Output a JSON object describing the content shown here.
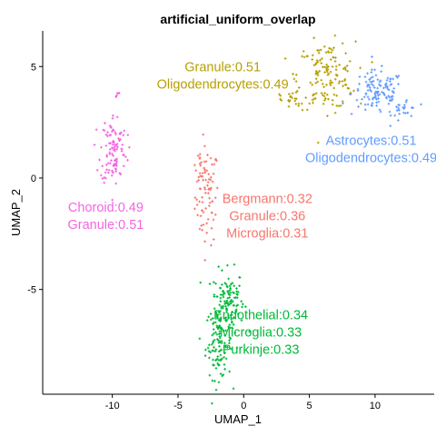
{
  "chart_data": {
    "type": "scatter",
    "title": "artificial_uniform_overlap",
    "xlabel": "UMAP_1",
    "ylabel": "UMAP_2",
    "xlim": [
      -15.3,
      14.5
    ],
    "ylim": [
      -9.7,
      6.6
    ],
    "x_ticks": [
      {
        "value": -10,
        "label": "-10"
      },
      {
        "value": -5,
        "label": "-5"
      },
      {
        "value": 0,
        "label": "0"
      },
      {
        "value": 5,
        "label": "5"
      },
      {
        "value": 10,
        "label": "10"
      }
    ],
    "y_ticks": [
      {
        "value": -5,
        "label": "-5"
      },
      {
        "value": 0,
        "label": "0"
      },
      {
        "value": 5,
        "label": "5"
      }
    ],
    "grid": false,
    "legend": "none",
    "clusters": [
      {
        "color": "#F8766D",
        "anchor_x": 1.8,
        "anchor_y": -1.7,
        "label_lines": [
          "Bergmann:0.32",
          "Granule:0.36",
          "Microglia:0.31"
        ],
        "regions": [
          {
            "x": -2.8,
            "y": -0.8,
            "sx": 0.45,
            "sy": 1.1,
            "n": 75
          },
          {
            "x": -3.3,
            "y": 0.4,
            "sx": 0.3,
            "sy": 0.4,
            "n": 15
          }
        ]
      },
      {
        "color": "#00BA38",
        "anchor_x": 1.3,
        "anchor_y": -6.9,
        "label_lines": [
          "Endothelial:0.34",
          "Microglia:0.33",
          "Purkinje:0.33"
        ],
        "regions": [
          {
            "x": -1.2,
            "y": -5.5,
            "sx": 0.6,
            "sy": 0.7,
            "n": 120
          },
          {
            "x": -1.9,
            "y": -7.4,
            "sx": 0.5,
            "sy": 0.8,
            "n": 110
          }
        ]
      },
      {
        "color": "#619CFF",
        "anchor_x": 9.7,
        "anchor_y": 1.3,
        "label_lines": [
          "Astrocytes:0.51",
          "Oligodendrocytes:0.49"
        ],
        "regions": [
          {
            "x": 10.2,
            "y": 3.8,
            "sx": 1.0,
            "sy": 0.5,
            "n": 120
          },
          {
            "x": 12.3,
            "y": 3.1,
            "sx": 0.5,
            "sy": 0.3,
            "n": 25
          }
        ]
      },
      {
        "color": "#B79F00",
        "anchor_x": -1.6,
        "anchor_y": 4.6,
        "label_lines": [
          "Granule:0.51",
          "Oligodendrocytes:0.49"
        ],
        "regions": [
          {
            "x": 6.3,
            "y": 4.6,
            "sx": 1.1,
            "sy": 0.75,
            "n": 140
          },
          {
            "x": 3.7,
            "y": 3.5,
            "sx": 0.9,
            "sy": 0.3,
            "n": 25
          }
        ]
      },
      {
        "color": "#F564E3",
        "anchor_x": -10.5,
        "anchor_y": -1.7,
        "label_lines": [
          "Choroid:0.49",
          "Granule:0.51"
        ],
        "regions": [
          {
            "x": -9.9,
            "y": 1.3,
            "sx": 0.5,
            "sy": 0.8,
            "n": 110
          },
          {
            "x": -9.6,
            "y": 3.7,
            "sx": 0.12,
            "sy": 0.1,
            "n": 6
          }
        ]
      }
    ]
  }
}
